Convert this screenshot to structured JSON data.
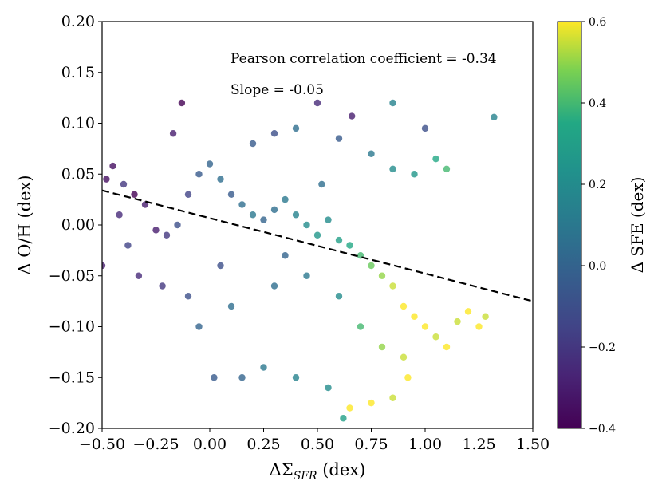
{
  "chart_data": {
    "type": "scatter",
    "xlabel_prefix": "ΔΣ",
    "xlabel_sub": "SFR",
    "xlabel_suffix": " (dex)",
    "ylabel": "Δ O/H (dex)",
    "xlim": [
      -0.5,
      1.5
    ],
    "ylim": [
      -0.2,
      0.2
    ],
    "xticks": [
      -0.5,
      -0.25,
      0.0,
      0.25,
      0.5,
      0.75,
      1.0,
      1.25,
      1.5
    ],
    "xtick_labels": [
      "−0.50",
      "−0.25",
      "0.00",
      "0.25",
      "0.50",
      "0.75",
      "1.00",
      "1.25",
      "1.50"
    ],
    "yticks": [
      -0.2,
      -0.15,
      -0.1,
      -0.05,
      0.0,
      0.05,
      0.1,
      0.15,
      0.2
    ],
    "ytick_labels": [
      "−0.20",
      "−0.15",
      "−0.10",
      "−0.05",
      "0.00",
      "0.05",
      "0.10",
      "0.15",
      "0.20"
    ],
    "annotations": [
      "Pearson correlation coefficient = -0.34",
      "Slope = -0.05"
    ],
    "fit_line": {
      "x": [
        -0.5,
        1.5
      ],
      "y": [
        0.034,
        -0.075
      ],
      "style": "dashed",
      "color": "#000000"
    },
    "colorbar": {
      "label": "Δ SFE (dex)",
      "range": [
        -0.4,
        0.6
      ],
      "ticks": [
        -0.4,
        -0.2,
        0.0,
        0.2,
        0.4,
        0.6
      ],
      "tick_labels": [
        "−0.4",
        "−0.2",
        "0.0",
        "0.2",
        "0.4",
        "0.6"
      ],
      "colormap": "viridis"
    },
    "points": [
      [
        -0.13,
        0.12,
        -0.4
      ],
      [
        0.5,
        0.12,
        -0.25
      ],
      [
        0.85,
        0.12,
        0.15
      ],
      [
        1.32,
        0.106,
        0.15
      ],
      [
        0.4,
        0.095,
        0.05
      ],
      [
        0.66,
        0.107,
        -0.3
      ],
      [
        1.0,
        0.095,
        -0.1
      ],
      [
        -0.17,
        0.09,
        -0.3
      ],
      [
        -0.48,
        0.045,
        -0.35
      ],
      [
        -0.5,
        -0.04,
        -0.3
      ],
      [
        -0.45,
        0.058,
        -0.35
      ],
      [
        -0.4,
        0.04,
        -0.2
      ],
      [
        -0.35,
        0.03,
        -0.4
      ],
      [
        -0.3,
        0.02,
        -0.3
      ],
      [
        -0.42,
        0.01,
        -0.25
      ],
      [
        -0.25,
        -0.005,
        -0.3
      ],
      [
        -0.38,
        -0.02,
        -0.15
      ],
      [
        -0.2,
        -0.01,
        -0.2
      ],
      [
        -0.15,
        0.0,
        -0.1
      ],
      [
        -0.1,
        0.03,
        -0.15
      ],
      [
        -0.05,
        0.05,
        -0.05
      ],
      [
        0.0,
        0.06,
        0.0
      ],
      [
        0.05,
        0.045,
        0.05
      ],
      [
        0.1,
        0.03,
        -0.05
      ],
      [
        0.15,
        0.02,
        0.05
      ],
      [
        0.2,
        0.01,
        0.1
      ],
      [
        0.25,
        0.005,
        0.0
      ],
      [
        0.3,
        0.015,
        0.05
      ],
      [
        0.35,
        0.025,
        0.1
      ],
      [
        0.4,
        0.01,
        0.15
      ],
      [
        0.45,
        0.0,
        0.2
      ],
      [
        0.5,
        -0.01,
        0.25
      ],
      [
        0.55,
        0.005,
        0.2
      ],
      [
        0.6,
        -0.015,
        0.3
      ],
      [
        0.65,
        -0.02,
        0.35
      ],
      [
        0.7,
        -0.03,
        0.4
      ],
      [
        0.75,
        -0.04,
        0.45
      ],
      [
        0.8,
        -0.05,
        0.5
      ],
      [
        0.85,
        -0.06,
        0.55
      ],
      [
        0.9,
        -0.08,
        0.6
      ],
      [
        0.95,
        -0.09,
        0.6
      ],
      [
        1.0,
        -0.1,
        0.6
      ],
      [
        1.05,
        -0.11,
        0.55
      ],
      [
        1.1,
        -0.12,
        0.6
      ],
      [
        1.15,
        -0.095,
        0.55
      ],
      [
        1.2,
        -0.085,
        0.6
      ],
      [
        1.25,
        -0.1,
        0.6
      ],
      [
        1.28,
        -0.09,
        0.55
      ],
      [
        0.92,
        -0.15,
        0.6
      ],
      [
        0.85,
        -0.17,
        0.55
      ],
      [
        0.75,
        -0.175,
        0.6
      ],
      [
        0.65,
        -0.18,
        0.6
      ],
      [
        0.62,
        -0.19,
        0.3
      ],
      [
        0.55,
        -0.16,
        0.2
      ],
      [
        0.4,
        -0.15,
        0.15
      ],
      [
        0.25,
        -0.14,
        0.1
      ],
      [
        0.15,
        -0.15,
        0.0
      ],
      [
        0.02,
        -0.15,
        -0.05
      ],
      [
        -0.05,
        -0.1,
        0.0
      ],
      [
        -0.1,
        -0.07,
        -0.1
      ],
      [
        0.1,
        -0.08,
        0.05
      ],
      [
        0.3,
        -0.06,
        0.05
      ],
      [
        0.45,
        -0.05,
        0.1
      ],
      [
        0.6,
        -0.07,
        0.2
      ],
      [
        0.7,
        -0.1,
        0.4
      ],
      [
        0.8,
        -0.12,
        0.5
      ],
      [
        0.9,
        -0.13,
        0.55
      ],
      [
        0.2,
        0.08,
        -0.05
      ],
      [
        0.3,
        0.09,
        -0.1
      ],
      [
        0.6,
        0.085,
        -0.05
      ],
      [
        0.75,
        0.07,
        0.1
      ],
      [
        0.85,
        0.055,
        0.2
      ],
      [
        0.95,
        0.05,
        0.25
      ],
      [
        1.05,
        0.065,
        0.35
      ],
      [
        1.1,
        0.055,
        0.4
      ],
      [
        -0.33,
        -0.05,
        -0.25
      ],
      [
        -0.22,
        -0.06,
        -0.2
      ],
      [
        0.05,
        -0.04,
        -0.1
      ],
      [
        0.35,
        -0.03,
        0.0
      ],
      [
        0.52,
        0.04,
        0.05
      ]
    ]
  }
}
